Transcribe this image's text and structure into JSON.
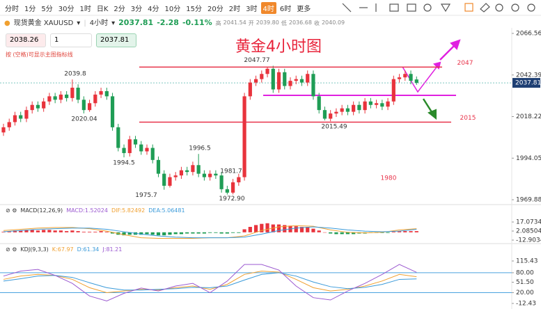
{
  "toolbar": {
    "periods": [
      "分时",
      "1分",
      "5分",
      "30分",
      "1时",
      "日K",
      "2分",
      "3分",
      "4分",
      "10分",
      "15分",
      "20分",
      "2时",
      "3时",
      "4时",
      "6时",
      "更多"
    ],
    "active": "4时"
  },
  "quote": {
    "symbol": "现货黄金 XAUUSD",
    "period": "4小时",
    "price": "2037.81",
    "change": "-2.28",
    "change_pct": "-0.11%",
    "stats": [
      {
        "label": "高",
        "value": "2041.54"
      },
      {
        "label": "开",
        "value": "2039.80"
      },
      {
        "label": "低",
        "value": "2036.68"
      },
      {
        "label": "收",
        "value": "2040.09"
      }
    ]
  },
  "order": {
    "inputs": [
      "2038.26",
      "1",
      "2037.81"
    ],
    "hint": "按 (空格)可显示主图指标线"
  },
  "chart_data": [
    {
      "type": "candlestick",
      "title": "黄金4小时图",
      "up_color": "#e8333c",
      "down_color": "#1f9d55",
      "open": [
        2009,
        2012,
        2015,
        2019,
        2017,
        2022,
        2025,
        2023,
        2027,
        2030,
        2028,
        2031,
        2029,
        2035,
        2028,
        2022,
        2026,
        2031,
        2033,
        2030,
        2012,
        2000,
        1997,
        2005,
        2002,
        1998,
        2000,
        1993,
        1985,
        1978,
        1983,
        1984,
        1987,
        1986,
        1990,
        1985,
        1983,
        1985,
        1984,
        1976,
        1974,
        1980,
        1983,
        2030,
        2038,
        2040,
        2043,
        2046,
        2034,
        2044,
        2036,
        2039,
        2040,
        2038,
        2043,
        2030,
        2022,
        2017,
        2020,
        2021,
        2023,
        2021,
        2025,
        2022,
        2027,
        2025,
        2026,
        2024,
        2027,
        2040,
        2041,
        2043,
        2039.8
      ],
      "high": [
        2014,
        2017,
        2021,
        2021,
        2024,
        2027,
        2027,
        2029,
        2032,
        2032,
        2033,
        2033,
        2039.8,
        2037,
        2030,
        2028,
        2033,
        2035,
        2035,
        2032,
        2014,
        2002,
        2007,
        2007,
        2004,
        2002,
        2002,
        1995,
        1987,
        1985,
        1986,
        1989,
        1989,
        1992,
        1996.5,
        1987,
        1987,
        1987,
        1986,
        1978,
        1982,
        1985,
        2032,
        2040,
        2042,
        2045,
        2047,
        2047.77,
        2046,
        2046,
        2041,
        2042,
        2042,
        2045,
        2045,
        2032,
        2024,
        2022,
        2023,
        2025,
        2025,
        2027,
        2027,
        2029,
        2029,
        2028,
        2028,
        2029,
        2042,
        2043,
        2045,
        2045,
        2041.54
      ],
      "low": [
        2007,
        2010,
        2013,
        2015,
        2015,
        2020,
        2021,
        2021,
        2025,
        2026,
        2026,
        2027,
        2027,
        2026,
        2020.04,
        2021,
        2024,
        2029,
        2028,
        2010,
        1998,
        1994.5,
        1995,
        2000,
        1996,
        1996,
        1991,
        1983,
        1975.7,
        1977,
        1981,
        1982,
        1984,
        1984,
        1983,
        1981,
        1981,
        1982,
        1974,
        1972.9,
        1973,
        1978,
        1981,
        2028,
        2036,
        2038,
        2041,
        2032,
        2032,
        2034,
        2034,
        2037,
        2036,
        2036,
        2028,
        2020,
        2016,
        2015.49,
        2018,
        2019,
        2019,
        2019,
        2020,
        2020,
        2023,
        2023,
        2022,
        2022,
        2025,
        2038,
        2039,
        2037,
        2036.68
      ],
      "close": [
        2012,
        2015,
        2019,
        2017,
        2022,
        2025,
        2023,
        2027,
        2030,
        2028,
        2031,
        2029,
        2035,
        2028,
        2022,
        2026,
        2031,
        2033,
        2030,
        2012,
        2000,
        1997,
        2005,
        2002,
        1998,
        2000,
        1993,
        1985,
        1978,
        1983,
        1984,
        1987,
        1986,
        1990,
        1985,
        1983,
        1985,
        1984,
        1976,
        1974,
        1980,
        1983,
        2030,
        2038,
        2040,
        2043,
        2046,
        2034,
        2044,
        2036,
        2039,
        2040,
        2038,
        2043,
        2030,
        2022,
        2017,
        2020,
        2021,
        2023,
        2021,
        2025,
        2022,
        2027,
        2025,
        2026,
        2024,
        2027,
        2040,
        2041,
        2043,
        2039,
        2037.81
      ],
      "ylim": [
        1969.88,
        2066.56
      ],
      "yticks": [
        2066.56,
        2042.39,
        2018.22,
        1994.05,
        1969.88
      ],
      "last_price": 2037.81,
      "price_labels": [
        2039.8,
        2020.04,
        1994.5,
        1996.5,
        1975.7,
        1981.7,
        {
          "value": 1972.9,
          "label": "1972.90"
        },
        2047.77,
        2015.49
      ],
      "levels": [
        {
          "value": 2047,
          "label": "2047",
          "color": "#e8334a"
        },
        {
          "value": 2015,
          "label": "2015",
          "color": "#e8334a"
        },
        {
          "value": 1980,
          "label": "1980",
          "color": "#e8334a"
        }
      ]
    },
    {
      "type": "macd",
      "title": "MACD(12,26,9)",
      "readouts": [
        {
          "text": "MACD:1.52024",
          "color": "#9b59d0"
        },
        {
          "text": "DIF:5.82492",
          "color": "#f0a030"
        },
        {
          "text": "DEA:5.06481",
          "color": "#3a9ad9"
        }
      ],
      "ylim": [
        -12.90341,
        17.07349
      ],
      "yticks": [
        17.07349,
        2.08504,
        -12.90341
      ],
      "histogram": [
        1,
        2,
        3,
        3,
        4,
        4,
        3,
        4,
        4,
        3,
        3,
        2,
        3,
        2,
        1,
        1,
        1,
        2,
        1,
        -2,
        -4,
        -5,
        -4,
        -4,
        -4,
        -3,
        -4,
        -5,
        -5,
        -4,
        -3,
        -3,
        -2,
        -2,
        -2,
        -2,
        -1,
        -1,
        -2,
        -2,
        -1,
        -1,
        5,
        9,
        12,
        14,
        15,
        13,
        13,
        12,
        11,
        10,
        9,
        9,
        6,
        3,
        0,
        -2,
        -3,
        -3,
        -3,
        -3,
        -2,
        -2,
        -1,
        -1,
        -1,
        -1,
        1,
        2,
        2,
        2,
        2
      ],
      "x": [
        0,
        3,
        6,
        9,
        12,
        15,
        18,
        21,
        24,
        27,
        30,
        33,
        36,
        39,
        42,
        45,
        48,
        51,
        54,
        57,
        60,
        63,
        66,
        69,
        72
      ],
      "series": [
        {
          "name": "DIF",
          "color": "#f0a030",
          "values": [
            3,
            5,
            7,
            8,
            8,
            6,
            2,
            -4,
            -9,
            -10,
            -10,
            -10,
            -9,
            -9,
            -6,
            3,
            9,
            11,
            10,
            4,
            0,
            -1,
            0,
            4,
            6
          ]
        },
        {
          "name": "DEA",
          "color": "#3a9ad9",
          "values": [
            1,
            3,
            5,
            6,
            7,
            7,
            5,
            1,
            -3,
            -6,
            -8,
            -9,
            -9,
            -9,
            -8,
            -3,
            3,
            7,
            9,
            7,
            4,
            2,
            1,
            2,
            5
          ]
        }
      ]
    },
    {
      "type": "kdj",
      "title": "KDJ(9,3,3)",
      "readouts": [
        {
          "text": "K:67.97",
          "color": "#f0a030"
        },
        {
          "text": "D:61.34",
          "color": "#3a9ad9"
        },
        {
          "text": "J:81.21",
          "color": "#9b59d0"
        }
      ],
      "ylim": [
        -12.43,
        115.43
      ],
      "yticks": [
        115.43,
        {
          "value": 80,
          "label": "80.00"
        },
        {
          "value": 51.5,
          "label": "51.50"
        },
        {
          "value": 20,
          "label": "20.00"
        },
        -12.43
      ],
      "reference_lines": [
        80,
        20
      ],
      "x": [
        0,
        3,
        6,
        9,
        12,
        15,
        18,
        21,
        24,
        27,
        30,
        33,
        36,
        39,
        42,
        45,
        48,
        51,
        54,
        57,
        60,
        63,
        66,
        69,
        72
      ],
      "series": [
        {
          "name": "K",
          "color": "#f0a030",
          "values": [
            60,
            70,
            75,
            72,
            60,
            35,
            20,
            25,
            30,
            28,
            35,
            40,
            30,
            45,
            75,
            85,
            82,
            60,
            35,
            25,
            30,
            40,
            55,
            75,
            67.97
          ]
        },
        {
          "name": "D",
          "color": "#3a9ad9",
          "values": [
            55,
            62,
            70,
            72,
            66,
            50,
            35,
            28,
            28,
            30,
            32,
            36,
            35,
            40,
            58,
            75,
            80,
            70,
            52,
            38,
            32,
            36,
            45,
            60,
            61.34
          ]
        },
        {
          "name": "J",
          "color": "#9b59d0",
          "values": [
            70,
            85,
            90,
            72,
            48,
            10,
            -5,
            18,
            34,
            25,
            40,
            48,
            20,
            55,
            105,
            105,
            88,
            40,
            5,
            -2,
            25,
            48,
            75,
            105,
            81.21
          ]
        }
      ]
    }
  ]
}
